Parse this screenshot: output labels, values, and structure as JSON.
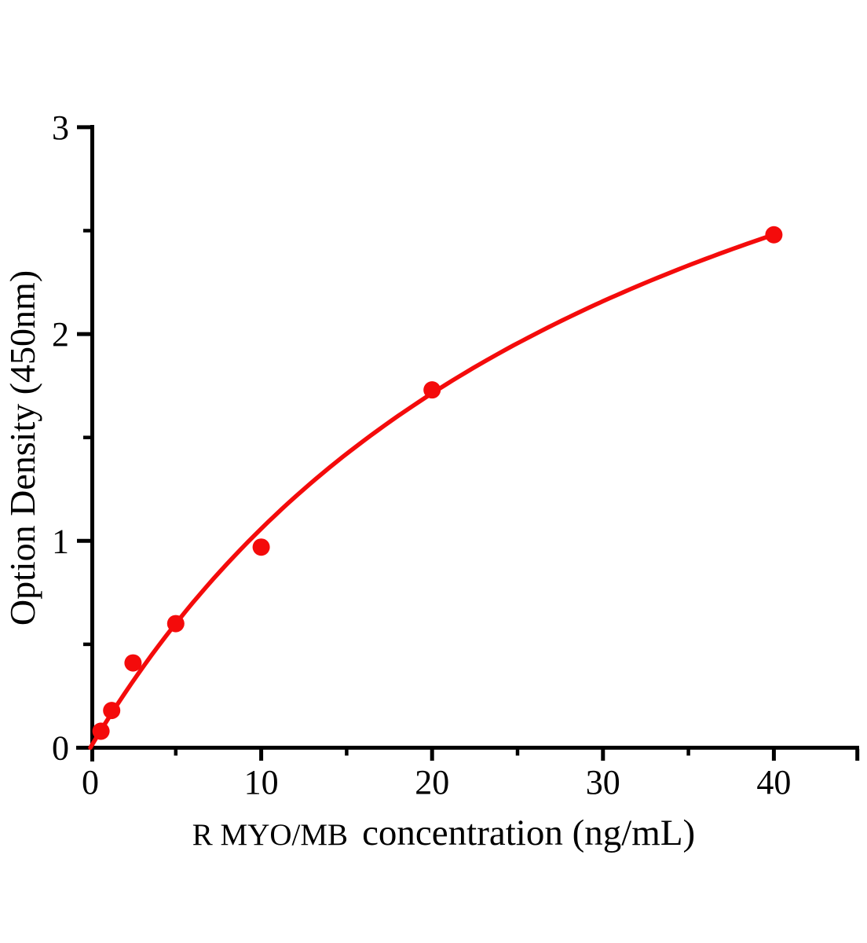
{
  "chart_data": {
    "type": "scatter",
    "title": "",
    "xlabel_prefix": "R MYO/MB",
    "xlabel_main": "concentration（ng/mL）",
    "ylabel": "Option Density（450nm）",
    "series": [
      {
        "name": "standard-curve-points",
        "x": [
          0.625,
          1.25,
          2.5,
          5,
          10,
          20,
          40
        ],
        "y": [
          0.08,
          0.18,
          0.41,
          0.6,
          0.97,
          1.73,
          2.48
        ]
      }
    ],
    "fit_curve": {
      "model": "michaelis_menten",
      "vmax": 4.49,
      "km": 32.4,
      "x_start": 0,
      "x_end": 40
    },
    "x_axis": {
      "range": [
        0,
        45
      ],
      "major_ticks": [
        0,
        10,
        20,
        30,
        40
      ],
      "minor_ticks": [
        5,
        15,
        25,
        35
      ],
      "end_tick": 45,
      "tick_labels": [
        "0",
        "10",
        "20",
        "30",
        "40"
      ]
    },
    "y_axis": {
      "range": [
        0,
        3
      ],
      "major_ticks": [
        0,
        1,
        2,
        3
      ],
      "minor_ticks": [
        0.5,
        1.5,
        2.5
      ],
      "tick_labels": [
        "0",
        "1",
        "2",
        "3"
      ]
    },
    "colors": {
      "curve": "#f40b0b",
      "points": "#f40b0b",
      "axis": "#000000",
      "text": "#000000"
    },
    "marker": {
      "shape": "circle",
      "radius_px": 11
    },
    "grid": false,
    "legend": false
  }
}
